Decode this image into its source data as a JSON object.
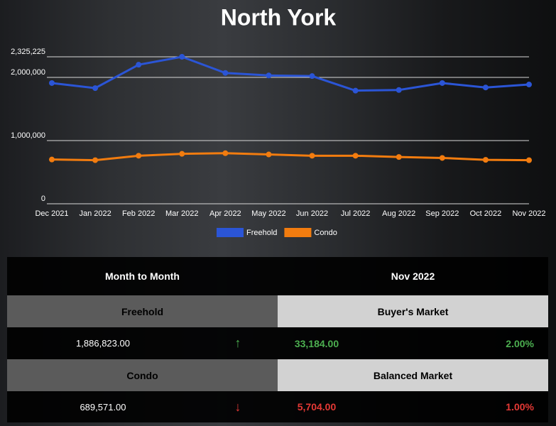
{
  "chart_data": {
    "type": "line",
    "title": "North York",
    "categories": [
      "Dec 2021",
      "Jan 2022",
      "Feb 2022",
      "Mar 2022",
      "Apr 2022",
      "May 2022",
      "Jun 2022",
      "Jul 2022",
      "Aug 2022",
      "Sep 2022",
      "Oct 2022",
      "Nov 2022"
    ],
    "series": [
      {
        "name": "Freehold",
        "color": "#2b55d6",
        "values": [
          1910000,
          1830000,
          2200000,
          2325225,
          2070000,
          2030000,
          2020000,
          1790000,
          1800000,
          1910000,
          1840000,
          1886823
        ]
      },
      {
        "name": "Condo",
        "color": "#f27c0f",
        "values": [
          700000,
          690000,
          760000,
          790000,
          800000,
          780000,
          760000,
          760000,
          740000,
          725000,
          695000,
          689571
        ]
      }
    ],
    "ylim": [
      0,
      2325225
    ],
    "yticks": [
      0,
      {
        "value": 1000000,
        "label": "1,000,000"
      },
      {
        "value": 2000000,
        "label": "2,000,000"
      },
      {
        "value": 2325225,
        "label": "2,325,225"
      }
    ],
    "grid": true,
    "legend": "bottom"
  },
  "table": {
    "headers": [
      "Month to Month",
      "Nov 2022"
    ],
    "rows": [
      {
        "label": "Freehold",
        "market": "Buyer's Market",
        "price": "1,886,823.00",
        "change": "33,184.00",
        "percent": "2.00%"
      },
      {
        "label": "Condo",
        "market": "Balanced Market",
        "price": "689,571.00",
        "change": "5,704.00",
        "percent": "1.00%"
      }
    ]
  }
}
